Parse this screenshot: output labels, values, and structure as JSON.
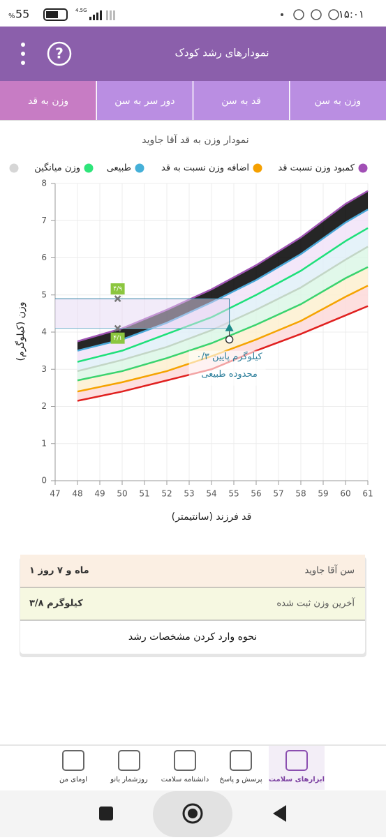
{
  "status_bar": {
    "time": "۱۵:۰۱",
    "battery": "55",
    "battery_unit": "%",
    "network": "4.5G"
  },
  "header": {
    "title": "نمودارهای رشد کودک"
  },
  "tabs": [
    "وزن به سن",
    "قد به سن",
    "دور سر به سن",
    "وزن به قد"
  ],
  "chart_data": {
    "type": "line",
    "title": "نمودار وزن به قد آقا جاوید",
    "x_label": "قد فرزند (سانتیمتر)",
    "y_label": "وزن (کیلوگرم)",
    "legend": [
      {
        "name": "کمبود وزن نسبت قد",
        "color": "#a14fb5"
      },
      {
        "name": "اضافه وزن نسبت به قد",
        "color": "#f5a000"
      },
      {
        "name": "طبیعی",
        "color": "#45b0d8"
      },
      {
        "name": "وزن میانگین",
        "color": "#2ee57a"
      },
      {
        "color": "#d6d6d6"
      }
    ],
    "x": [
      48,
      50,
      52,
      54,
      56,
      58,
      60,
      61
    ],
    "series": [
      {
        "color": "#e0201f",
        "values": [
          2.15,
          2.4,
          2.7,
          3.0,
          3.5,
          3.95,
          4.45,
          4.7
        ]
      },
      {
        "color": "#f5a300",
        "values": [
          2.4,
          2.65,
          2.95,
          3.35,
          3.8,
          4.3,
          4.95,
          5.25
        ]
      },
      {
        "color": "#3ad36e",
        "values": [
          2.7,
          2.95,
          3.3,
          3.7,
          4.2,
          4.75,
          5.45,
          5.75
        ]
      },
      {
        "color": "#c3d6c6",
        "values": [
          2.95,
          3.25,
          3.6,
          4.05,
          4.6,
          5.2,
          5.95,
          6.3
        ]
      },
      {
        "color": "#1ee07a",
        "values": [
          3.2,
          3.5,
          3.95,
          4.4,
          5.0,
          5.65,
          6.45,
          6.8
        ]
      },
      {
        "color": "#4aa8d8",
        "values": [
          3.5,
          3.8,
          4.25,
          4.8,
          5.4,
          6.1,
          6.95,
          7.3
        ]
      },
      {
        "color": "#a055b5",
        "values": [
          3.75,
          4.1,
          4.6,
          5.15,
          5.8,
          6.55,
          7.45,
          7.8
        ]
      }
    ],
    "band_colors": [
      "#fdd9d9",
      "#fdf0d0",
      "#dcf7e6",
      "#e0f0f8",
      "#f1e3f8"
    ],
    "xlim": [
      47,
      61
    ],
    "xticks": [
      47,
      48,
      49,
      50,
      51,
      52,
      53,
      54,
      55,
      56,
      57,
      58,
      59,
      60,
      61
    ],
    "ylim": [
      0,
      8
    ],
    "yticks": [
      0,
      1,
      2,
      3,
      4,
      5,
      6,
      7,
      8
    ],
    "grid": true,
    "markers": [
      {
        "x": 49.8,
        "y": 4.9,
        "label": "۴/۹"
      },
      {
        "x": 49.8,
        "y": 4.1,
        "label": "۴/۱"
      }
    ],
    "child_point": {
      "x": 54.8,
      "y": 3.8
    },
    "normal_lower": {
      "x": 54.8,
      "y": 4.1
    },
    "note": [
      "۰/۳ کیلوگرم پایین",
      "محدوده طبیعی"
    ]
  },
  "info_card": {
    "rows": [
      [
        "سن آقا جاوید",
        "۱ ماه و ۷ روز"
      ],
      [
        "آخرین وزن ثبت شده",
        "۳/۸ کیلوگرم"
      ]
    ],
    "link": "نحوه وارد کردن مشخصات رشد"
  },
  "bottom_nav": [
    "ابزارهای سلامت",
    "پرسش و پاسخ",
    "دانشنامه سلامت",
    "روزشمار بانو",
    "اومای من"
  ]
}
